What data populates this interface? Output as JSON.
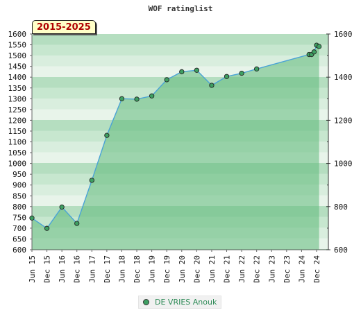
{
  "chart_data": {
    "type": "area",
    "title": "WOF ratinglist",
    "period_label": "2015-2025",
    "ylim": [
      600,
      1600
    ],
    "y_ticks_left": [
      1600,
      1550,
      1500,
      1450,
      1400,
      1350,
      1300,
      1250,
      1200,
      1150,
      1100,
      1050,
      1000,
      950,
      900,
      850,
      800,
      750,
      700,
      650,
      600
    ],
    "y_ticks_right": [
      1600,
      1400,
      1200,
      1000,
      800,
      600
    ],
    "x_ticks": [
      "Jun 15",
      "Dec 15",
      "Jun 16",
      "Dec 16",
      "Jun 17",
      "Dec 17",
      "Jun 18",
      "Dec 18",
      "Jun 19",
      "Dec 19",
      "Jun 20",
      "Dec 20",
      "Jun 21",
      "Dec 21",
      "Jun 22",
      "Dec 22",
      "Jun 23",
      "Dec 23",
      "Jun 24",
      "Dec 24"
    ],
    "legend_position": "bottom",
    "series": [
      {
        "name": "DE VRIES Anouk",
        "color": "#3e9f62",
        "points": [
          {
            "x": "Jun 15",
            "y": 747
          },
          {
            "x": "Dec 15",
            "y": 699
          },
          {
            "x": "Jun 16",
            "y": 798
          },
          {
            "x": "Dec 16",
            "y": 722
          },
          {
            "x": "Jun 17",
            "y": 922
          },
          {
            "x": "Dec 17",
            "y": 1130
          },
          {
            "x": "Jun 18",
            "y": 1300
          },
          {
            "x": "Dec 18",
            "y": 1298
          },
          {
            "x": "Jun 19",
            "y": 1313
          },
          {
            "x": "Dec 19",
            "y": 1388
          },
          {
            "x": "Jun 20",
            "y": 1425
          },
          {
            "x": "Dec 20",
            "y": 1432
          },
          {
            "x": "Jun 21",
            "y": 1362
          },
          {
            "x": "Dec 21",
            "y": 1403
          },
          {
            "x": "Jun 22",
            "y": 1418
          },
          {
            "x": "Dec 22",
            "y": 1438
          },
          {
            "x": "Sep 24",
            "y": 1505
          },
          {
            "x": "Oct 24",
            "y": 1505
          },
          {
            "x": "Nov 24",
            "y": 1517
          },
          {
            "x": "Dec 24",
            "y": 1548
          },
          {
            "x": "Jan 25",
            "y": 1542
          }
        ]
      }
    ]
  }
}
